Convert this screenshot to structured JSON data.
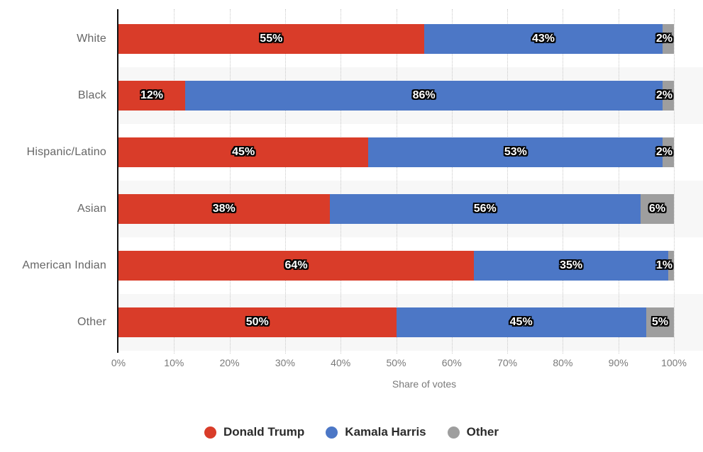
{
  "chart_data": {
    "type": "bar",
    "stacked": true,
    "orientation": "horizontal",
    "title": "",
    "xlabel": "Share of votes",
    "categories": [
      "White",
      "Black",
      "Hispanic/Latino",
      "Asian",
      "American Indian",
      "Other"
    ],
    "series": [
      {
        "name": "Donald Trump",
        "color": "#d93c29",
        "values": [
          55,
          12,
          45,
          38,
          64,
          50
        ]
      },
      {
        "name": "Kamala Harris",
        "color": "#4c77c6",
        "values": [
          43,
          86,
          53,
          56,
          35,
          45
        ]
      },
      {
        "name": "Other",
        "color": "#9e9e9e",
        "values": [
          2,
          2,
          2,
          6,
          1,
          5
        ]
      }
    ],
    "value_suffix": "%",
    "x_ticks": [
      "0%",
      "10%",
      "20%",
      "30%",
      "40%",
      "50%",
      "60%",
      "70%",
      "80%",
      "90%",
      "100%"
    ],
    "xlim": [
      0,
      100
    ],
    "grid": "vertical-dotted",
    "legend_position": "bottom"
  },
  "colors": {
    "band_alt": "#f7f7f7",
    "gridline": "#c8c8c8",
    "axis_line": "#111111",
    "tick_text": "#7a7a7a",
    "category_text": "#666666",
    "legend_text": "#2b2b2b",
    "bar_label_fill": "#ffffff",
    "bar_label_outline": "#000000"
  }
}
